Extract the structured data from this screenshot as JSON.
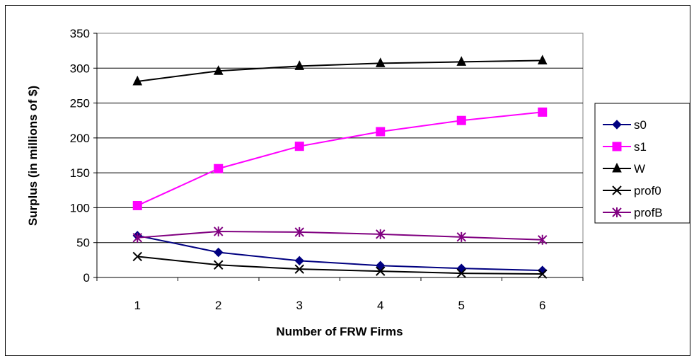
{
  "chart_data": {
    "type": "line",
    "title": "",
    "xlabel": "Number of FRW Firms",
    "ylabel": "Surplus (in millions of $)",
    "x": [
      1,
      2,
      3,
      4,
      5,
      6
    ],
    "ylim": [
      0,
      350
    ],
    "yticks": [
      0,
      50,
      100,
      150,
      200,
      250,
      300,
      350
    ],
    "grid": "horizontal",
    "legend_position": "right",
    "series": [
      {
        "name": "s0",
        "values": [
          60,
          36,
          24,
          17,
          13,
          10
        ],
        "color": "#000080",
        "marker": "diamond"
      },
      {
        "name": "s1",
        "values": [
          103,
          156,
          188,
          209,
          225,
          237
        ],
        "color": "#ff00ff",
        "marker": "square"
      },
      {
        "name": "W",
        "values": [
          281,
          296,
          303,
          307,
          309,
          311
        ],
        "color": "#000000",
        "marker": "triangle"
      },
      {
        "name": "prof0",
        "values": [
          30,
          18,
          12,
          9,
          6,
          5
        ],
        "color": "#000000",
        "marker": "x"
      },
      {
        "name": "profB",
        "values": [
          57,
          66,
          65,
          62,
          58,
          54
        ],
        "color": "#800080",
        "marker": "star"
      }
    ]
  }
}
